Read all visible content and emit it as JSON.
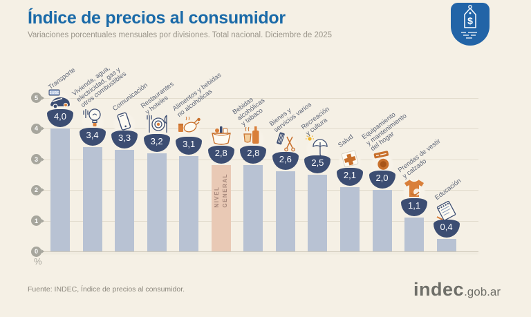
{
  "header": {
    "title": "Índice de precios al consumidor",
    "subtitle": "Variaciones porcentuales mensuales por divisiones. Total nacional. Diciembre de 2025"
  },
  "brand_badge": {
    "icon": "price-tag-icon",
    "symbol": "$"
  },
  "axis": {
    "unit_label": "%",
    "ticks": [
      5,
      4,
      3,
      2,
      1,
      0
    ]
  },
  "footer": {
    "source": "Fuente: INDEC, Índice de precios al consumidor.",
    "logo_main": "indec",
    "logo_suffix": ".gob.ar"
  },
  "colors": {
    "background": "#f5f0e5",
    "title_blue": "#1a6aa8",
    "bar": "#b8c2d3",
    "highlight_bar": "#e9c9b5",
    "badge_navy": "#3c4d72",
    "accent_orange": "#d97f3a",
    "brand_blue": "#2264a7"
  },
  "icon_texts": {
    "transport_card": "SUBE"
  },
  "chart_data": {
    "type": "bar",
    "title": "Índice de precios al consumidor",
    "subtitle": "Variaciones porcentuales mensuales por divisiones. Total nacional. Diciembre de 2025",
    "xlabel": "",
    "ylabel": "%",
    "ylim": [
      0,
      5
    ],
    "yticks": [
      5,
      4,
      3,
      2,
      1,
      0
    ],
    "grid": true,
    "legend_position": "none",
    "categories": [
      "Transporte",
      "Vivienda, agua, electricidad, gas y otros combustibles",
      "Comunicación",
      "Restaurantes y hoteles",
      "Alimentos y bebidas no alcohólicas",
      "Nivel general",
      "Bebidas alcohólicas y tabaco",
      "Bienes y servicios varios",
      "Recreación y cultura",
      "Salud",
      "Equipamiento y mantenimiento del hogar",
      "Prendas de vestir y calzado",
      "Educación"
    ],
    "series": [
      {
        "name": "Variación porcentual mensual",
        "values": [
          4.0,
          3.4,
          3.3,
          3.2,
          3.1,
          2.8,
          2.8,
          2.6,
          2.5,
          2.1,
          2.0,
          1.1,
          0.4
        ]
      }
    ],
    "bars": [
      {
        "category": "Transporte",
        "label_lines": [
          "Transporte"
        ],
        "value": 4.0,
        "display": "4,0",
        "icon": "car-icon",
        "highlight": false
      },
      {
        "category": "Vivienda, agua, electricidad, gas y otros combustibles",
        "label_lines": [
          "Vivienda, agua,",
          "electricidad, gas y",
          "otros combustibles"
        ],
        "value": 3.4,
        "display": "3,4",
        "icon": "bulb-icon",
        "highlight": false
      },
      {
        "category": "Comunicación",
        "label_lines": [
          "Comunicación"
        ],
        "value": 3.3,
        "display": "3,3",
        "icon": "phone-icon",
        "highlight": false
      },
      {
        "category": "Restaurantes y hoteles",
        "label_lines": [
          "Restaurantes",
          "y hoteles"
        ],
        "value": 3.2,
        "display": "3,2",
        "icon": "cutlery-icon",
        "highlight": false
      },
      {
        "category": "Alimentos y bebidas no alcohólicas",
        "label_lines": [
          "Alimentos y bebidas",
          "no alcohólicas"
        ],
        "value": 3.1,
        "display": "3,1",
        "icon": "food-icon",
        "highlight": false
      },
      {
        "category": "Nivel general",
        "label_lines": [],
        "in_bar_label": "NIVEL\nGENERAL",
        "value": 2.8,
        "display": "2,8",
        "icon": "basket-icon",
        "highlight": true
      },
      {
        "category": "Bebidas alcohólicas y tabaco",
        "label_lines": [
          "Bebidas",
          "alcohólicas",
          "y tabaco"
        ],
        "value": 2.8,
        "display": "2,8",
        "icon": "drinks-icon",
        "highlight": false
      },
      {
        "category": "Bienes y servicios varios",
        "label_lines": [
          "Bienes y",
          "servicios varios"
        ],
        "value": 2.6,
        "display": "2,6",
        "icon": "personal-goods-icon",
        "highlight": false
      },
      {
        "category": "Recreación y cultura",
        "label_lines": [
          "Recreación",
          "y cultura"
        ],
        "value": 2.5,
        "display": "2,5",
        "icon": "umbrella-icon",
        "highlight": false
      },
      {
        "category": "Salud",
        "label_lines": [
          "Salud"
        ],
        "value": 2.1,
        "display": "2,1",
        "icon": "health-cross-icon",
        "highlight": false
      },
      {
        "category": "Equipamiento y mantenimiento del hogar",
        "label_lines": [
          "Equipamiento",
          "y mantenimiento",
          "del hogar"
        ],
        "value": 2.0,
        "display": "2,0",
        "icon": "washing-machine-icon",
        "highlight": false
      },
      {
        "category": "Prendas de vestir y calzado",
        "label_lines": [
          "Prendas de vestir",
          "y calzado"
        ],
        "value": 1.1,
        "display": "1,1",
        "icon": "tshirt-icon",
        "highlight": false
      },
      {
        "category": "Educación",
        "label_lines": [
          "Educación"
        ],
        "value": 0.4,
        "display": "0,4",
        "icon": "notebook-icon",
        "highlight": false
      }
    ]
  }
}
